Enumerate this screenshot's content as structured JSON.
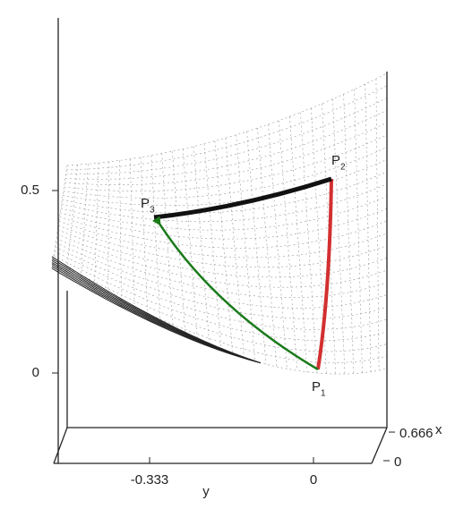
{
  "chart_data": {
    "type": "surface3d",
    "zticks": [
      0,
      0.5
    ],
    "yticks": [
      -0.333,
      0
    ],
    "xticks": [
      0,
      0.666
    ],
    "xlabel": "x",
    "ylabel": "y",
    "points": [
      {
        "name": "P",
        "sub": "1"
      },
      {
        "name": "P",
        "sub": "2"
      },
      {
        "name": "P",
        "sub": "3"
      }
    ]
  }
}
